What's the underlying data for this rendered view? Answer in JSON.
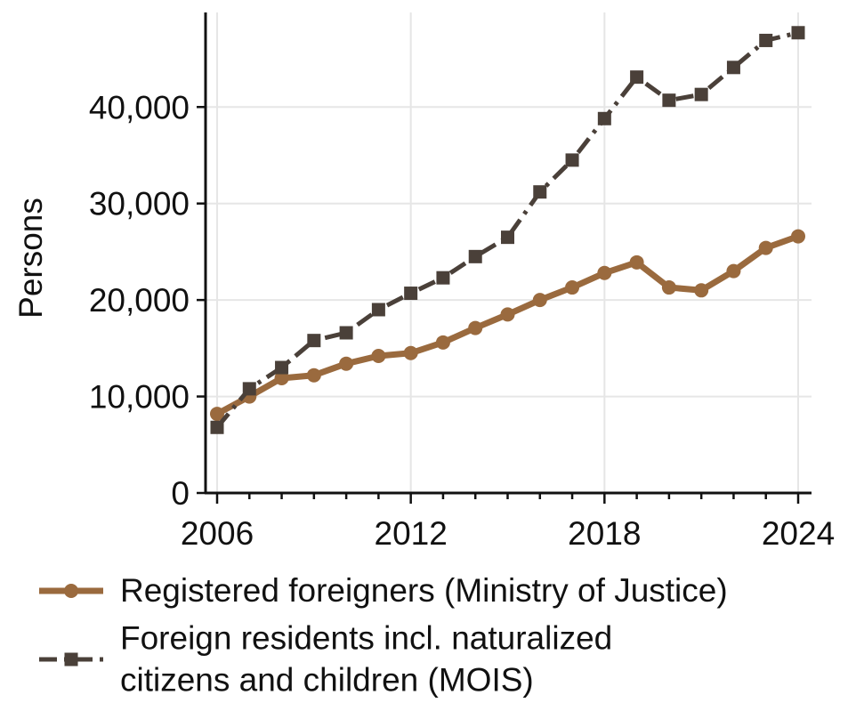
{
  "chart_data": {
    "type": "line",
    "ylabel": "Persons",
    "xlabel": "",
    "xlim": [
      2006,
      2024
    ],
    "ylim": [
      0,
      49800
    ],
    "xticks": [
      2006,
      2012,
      2018,
      2024
    ],
    "xtick_labels": [
      "2006",
      "2012",
      "2018",
      "2024"
    ],
    "yticks": [
      0,
      10000,
      20000,
      30000,
      40000
    ],
    "ytick_labels": [
      "0",
      "10,000",
      "20,000",
      "30,000",
      "40,000"
    ],
    "grid": true,
    "legend_position": "bottom",
    "x": [
      2006,
      2007,
      2008,
      2009,
      2010,
      2011,
      2012,
      2013,
      2014,
      2015,
      2016,
      2017,
      2018,
      2019,
      2020,
      2021,
      2022,
      2023,
      2024
    ],
    "series": [
      {
        "name": "Registered foreigners (Ministry of Justice)",
        "color": "#9a6a3e",
        "style": "solid",
        "marker": "circle",
        "values": [
          8200,
          10000,
          11900,
          12200,
          13400,
          14200,
          14500,
          15600,
          17100,
          18500,
          20000,
          21300,
          22800,
          23900,
          21300,
          21000,
          23000,
          25400,
          26600
        ]
      },
      {
        "name": "Foreign residents incl. naturalized citizens and children (MOIS)",
        "color": "#4a4039",
        "style": "dashdot",
        "marker": "square",
        "values": [
          6800,
          10800,
          13000,
          15800,
          16600,
          19000,
          20700,
          22300,
          24500,
          26500,
          31200,
          34500,
          38800,
          43100,
          40700,
          41300,
          44100,
          46900,
          47700
        ]
      }
    ],
    "legend": {
      "entries": [
        {
          "lines": [
            "Registered foreigners (Ministry of Justice)"
          ]
        },
        {
          "lines": [
            "Foreign residents incl. naturalized",
            "citizens and children (MOIS)"
          ]
        }
      ]
    }
  }
}
